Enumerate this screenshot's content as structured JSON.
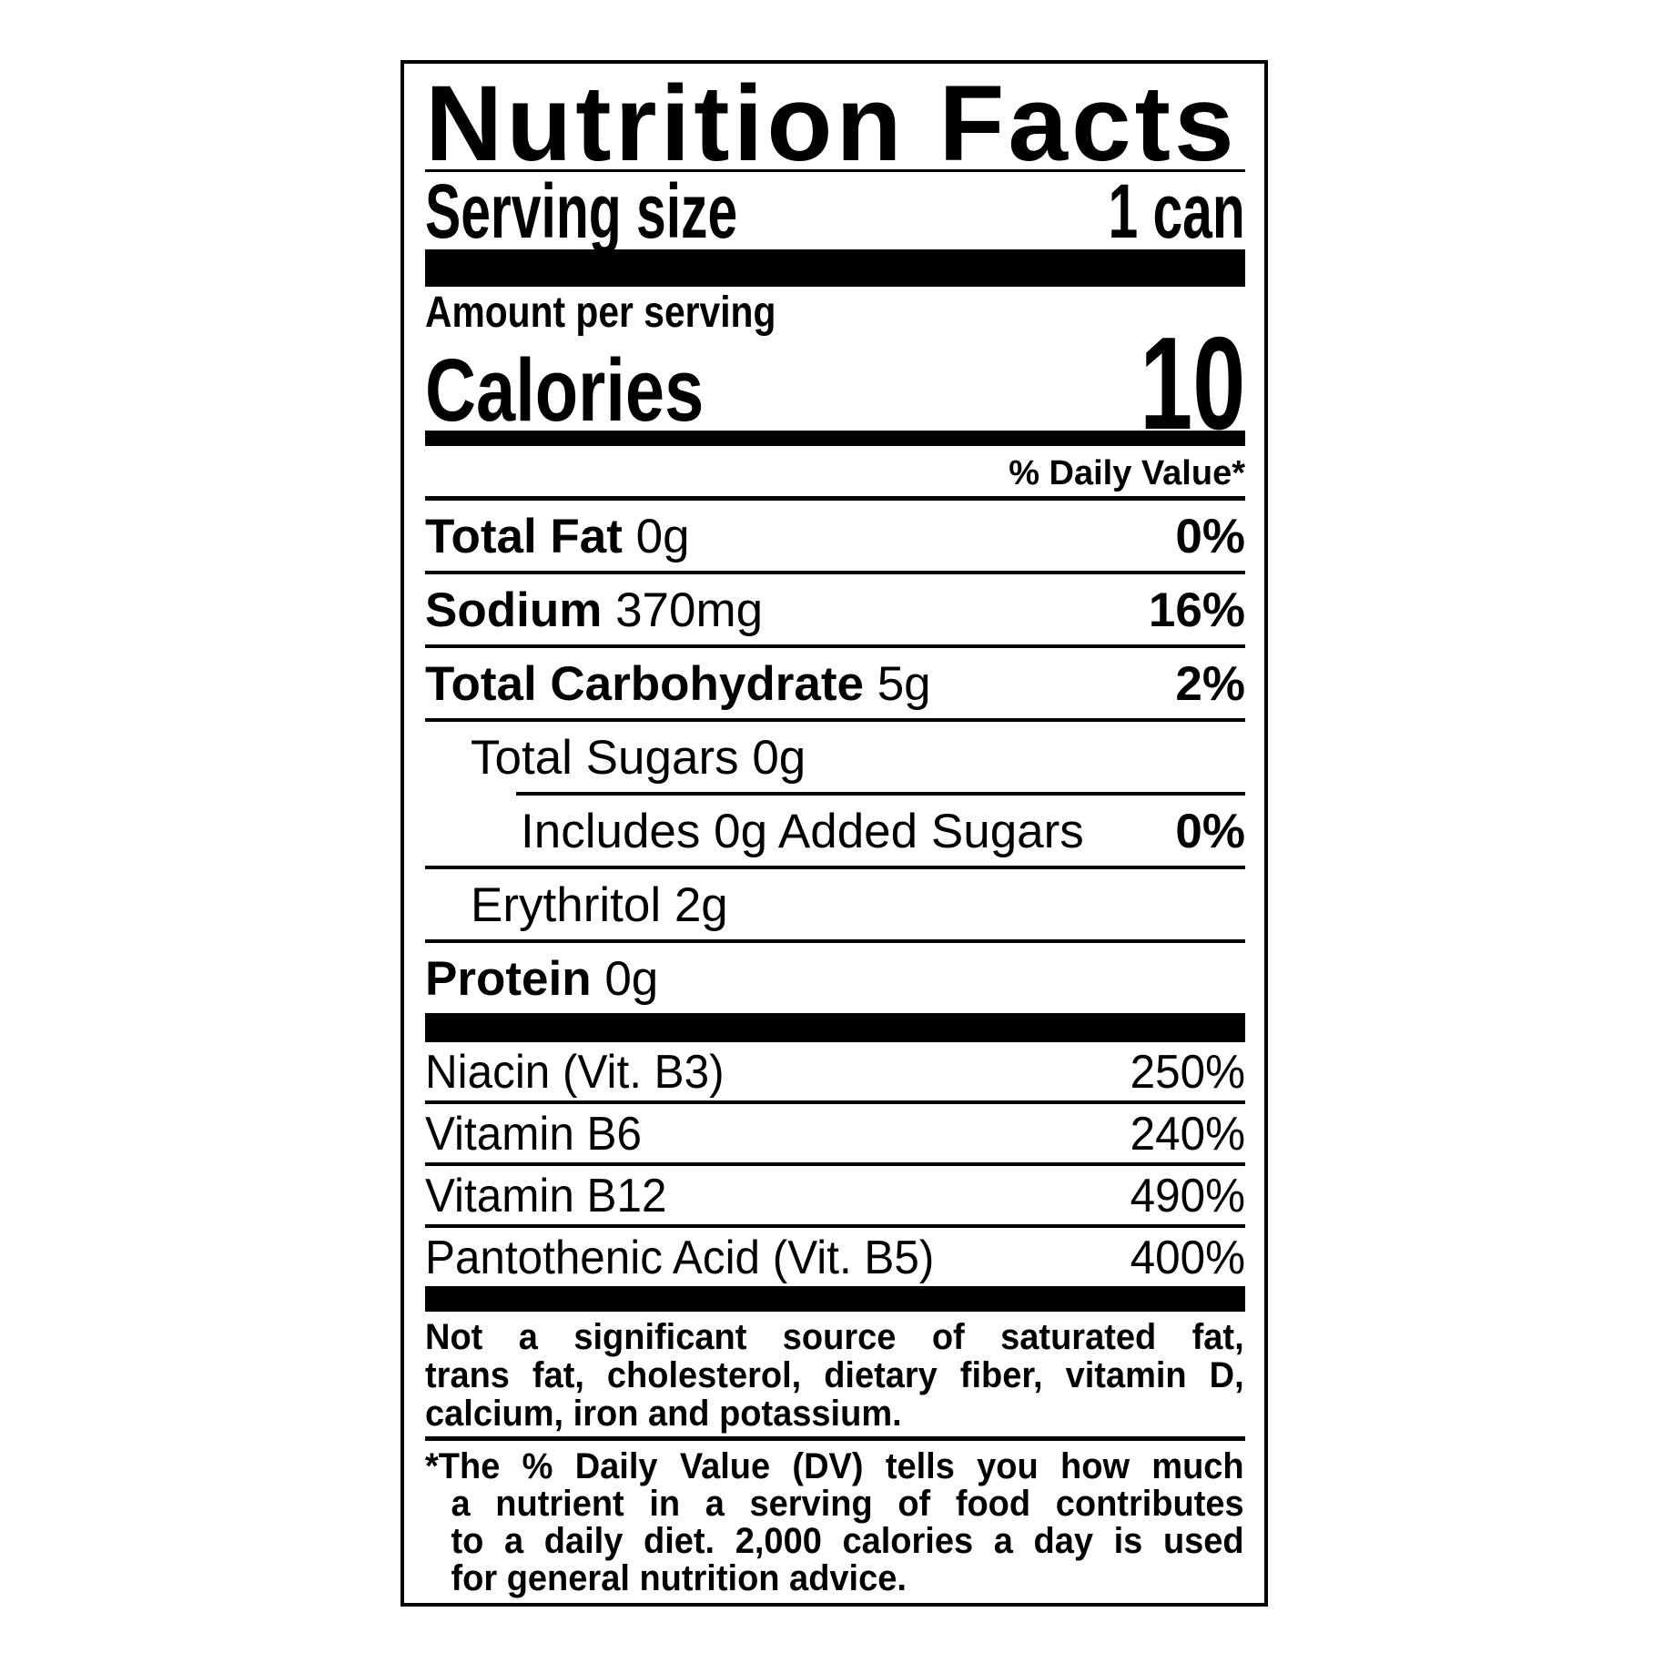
{
  "colors": {
    "ink": "#000000",
    "paper": "#ffffff"
  },
  "label": {
    "title": "Nutrition Facts",
    "serving_row": {
      "label": "Serving size",
      "value": "1 can"
    },
    "amount_caption": "Amount per serving",
    "calories_row": {
      "label": "Calories",
      "value": "10"
    },
    "dv_header": "% Daily Value*",
    "rows": [
      {
        "name": "Total Fat",
        "amount": "0g",
        "dv": "0%"
      },
      {
        "name": "Sodium",
        "amount": "370mg",
        "dv": "16%"
      },
      {
        "name": "Total Carbohydrate",
        "amount": "5g",
        "dv": "2%"
      },
      {
        "text": "Total Sugars 0g"
      },
      {
        "text": "Includes 0g Added Sugars",
        "dv": "0%"
      },
      {
        "text": "Erythritol 2g"
      },
      {
        "name": "Protein",
        "amount": "0g"
      }
    ],
    "vitamins": [
      {
        "name": "Niacin (Vit. B3)",
        "dv": "250%"
      },
      {
        "name": "Vitamin B6",
        "dv": "240%"
      },
      {
        "name": "Vitamin B12",
        "dv": "490%"
      },
      {
        "name": "Pantothenic Acid (Vit. B5)",
        "dv": "400%"
      }
    ],
    "footnote_source": {
      "lines": [
        "Not a significant source of saturated fat,",
        "trans fat, cholesterol, dietary fiber, vitamin D,",
        "calcium, iron and potassium."
      ]
    },
    "footnote_dv": {
      "lines": [
        "*The % Daily Value (DV) tells you how much",
        "a nutrient in a serving of food contributes",
        "to a daily diet. 2,000 calories a day is used",
        "for general nutrition advice."
      ]
    }
  }
}
